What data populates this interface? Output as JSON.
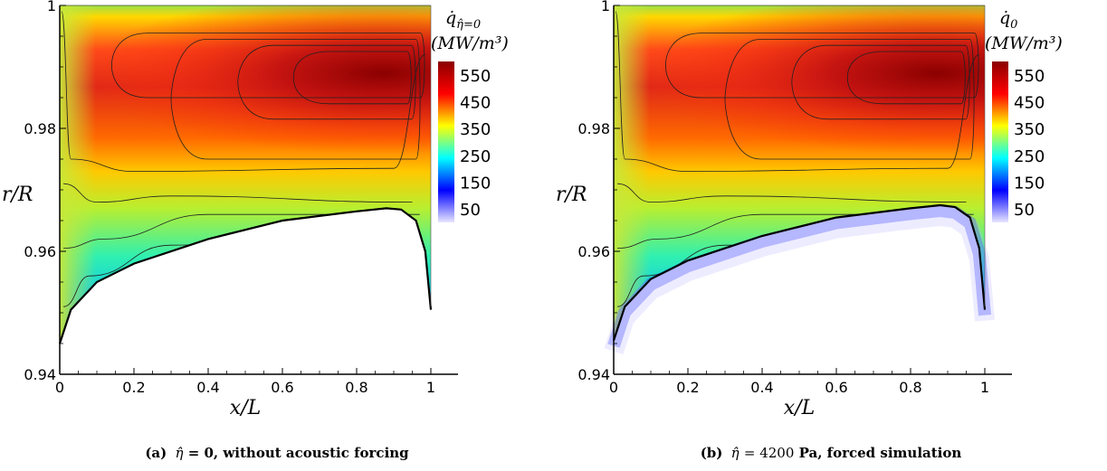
{
  "chart_data": [
    {
      "type": "heatmap",
      "panel": "a",
      "xlabel": "x/L",
      "ylabel": "r/R",
      "xlim": [
        0,
        1
      ],
      "ylim": [
        0.94,
        1.0
      ],
      "x_ticks": [
        "0",
        "0.2",
        "0.4",
        "0.6",
        "0.8",
        "1"
      ],
      "y_ticks": [
        "0.94",
        "0.96",
        "0.98",
        "1"
      ],
      "colorbar": {
        "title_symbol": "q̇",
        "title_subscript": "η̂=0",
        "units": "(MW/m³)",
        "ticks": [
          "550",
          "450",
          "350",
          "250",
          "150",
          "50"
        ],
        "range": [
          0,
          600
        ]
      },
      "peak": {
        "x": 0.87,
        "y": 0.989,
        "value": 560
      },
      "flame_base_boundary": [
        [
          0.0,
          0.945
        ],
        [
          0.03,
          0.9505
        ],
        [
          0.1,
          0.955
        ],
        [
          0.2,
          0.958
        ],
        [
          0.4,
          0.962
        ],
        [
          0.6,
          0.965
        ],
        [
          0.8,
          0.9665
        ],
        [
          0.88,
          0.967
        ],
        [
          0.92,
          0.9668
        ],
        [
          0.96,
          0.965
        ],
        [
          0.985,
          0.96
        ],
        [
          1.0,
          0.9505
        ]
      ],
      "caption": {
        "label": "(a)",
        "symbol": "η̂",
        "text": "= 0, without acoustic forcing",
        "value": "",
        "unit": ""
      }
    },
    {
      "type": "heatmap",
      "panel": "b",
      "xlabel": "x/L",
      "ylabel": "r/R",
      "xlim": [
        0,
        1
      ],
      "ylim": [
        0.94,
        1.0
      ],
      "x_ticks": [
        "0",
        "0.2",
        "0.4",
        "0.6",
        "0.8",
        "1"
      ],
      "y_ticks": [
        "0.94",
        "0.96",
        "0.98",
        "1"
      ],
      "colorbar": {
        "title_symbol": "q̇",
        "title_subscript": "0",
        "units": "(MW/m³)",
        "ticks": [
          "550",
          "450",
          "350",
          "250",
          "150",
          "50"
        ],
        "range": [
          0,
          600
        ]
      },
      "peak": {
        "x": 0.87,
        "y": 0.989,
        "value": 560
      },
      "flame_base_boundary": [
        [
          0.0,
          0.9455
        ],
        [
          0.03,
          0.951
        ],
        [
          0.1,
          0.9555
        ],
        [
          0.2,
          0.9585
        ],
        [
          0.4,
          0.9625
        ],
        [
          0.6,
          0.9655
        ],
        [
          0.8,
          0.967
        ],
        [
          0.88,
          0.9675
        ],
        [
          0.92,
          0.9672
        ],
        [
          0.96,
          0.9655
        ],
        [
          0.985,
          0.9605
        ],
        [
          1.0,
          0.9505
        ]
      ],
      "caption": {
        "label": "(b)",
        "symbol": "η̂",
        "text": "",
        "value": "= 4200",
        "unit": "Pa, forced simulation"
      }
    }
  ],
  "colors": {
    "colormap": [
      "#e8e6ff",
      "#0000ff",
      "#00ffff",
      "#ffff00",
      "#ff0000",
      "#8b0000"
    ]
  }
}
